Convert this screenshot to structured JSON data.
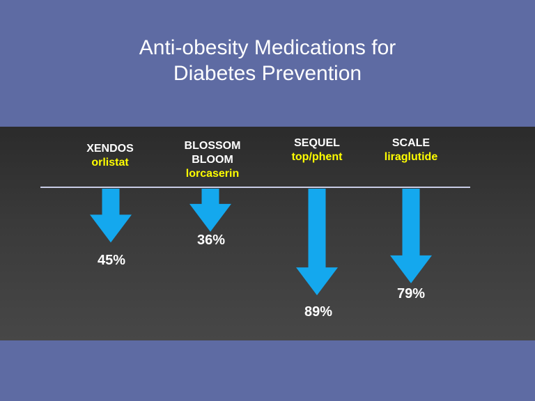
{
  "title": {
    "line1": "Anti-obesity Medications for",
    "line2": "Diabetes Prevention"
  },
  "colors": {
    "background": "#5e6ba3",
    "arrow": "#14a8ee",
    "drug_label": "#ffff00"
  },
  "chart_data": {
    "type": "bar",
    "orientation": "downward-arrows",
    "categories": [
      "XENDOS",
      "BLOSSOM\nBLOOM",
      "SEQUEL",
      "SCALE"
    ],
    "drugs": [
      "orlistat",
      "lorcaserin",
      "top/phent",
      "liraglutide"
    ],
    "values": [
      45,
      36,
      89,
      79
    ],
    "value_labels": [
      "45%",
      "36%",
      "89%",
      "79%"
    ],
    "ylim": [
      0,
      100
    ]
  }
}
